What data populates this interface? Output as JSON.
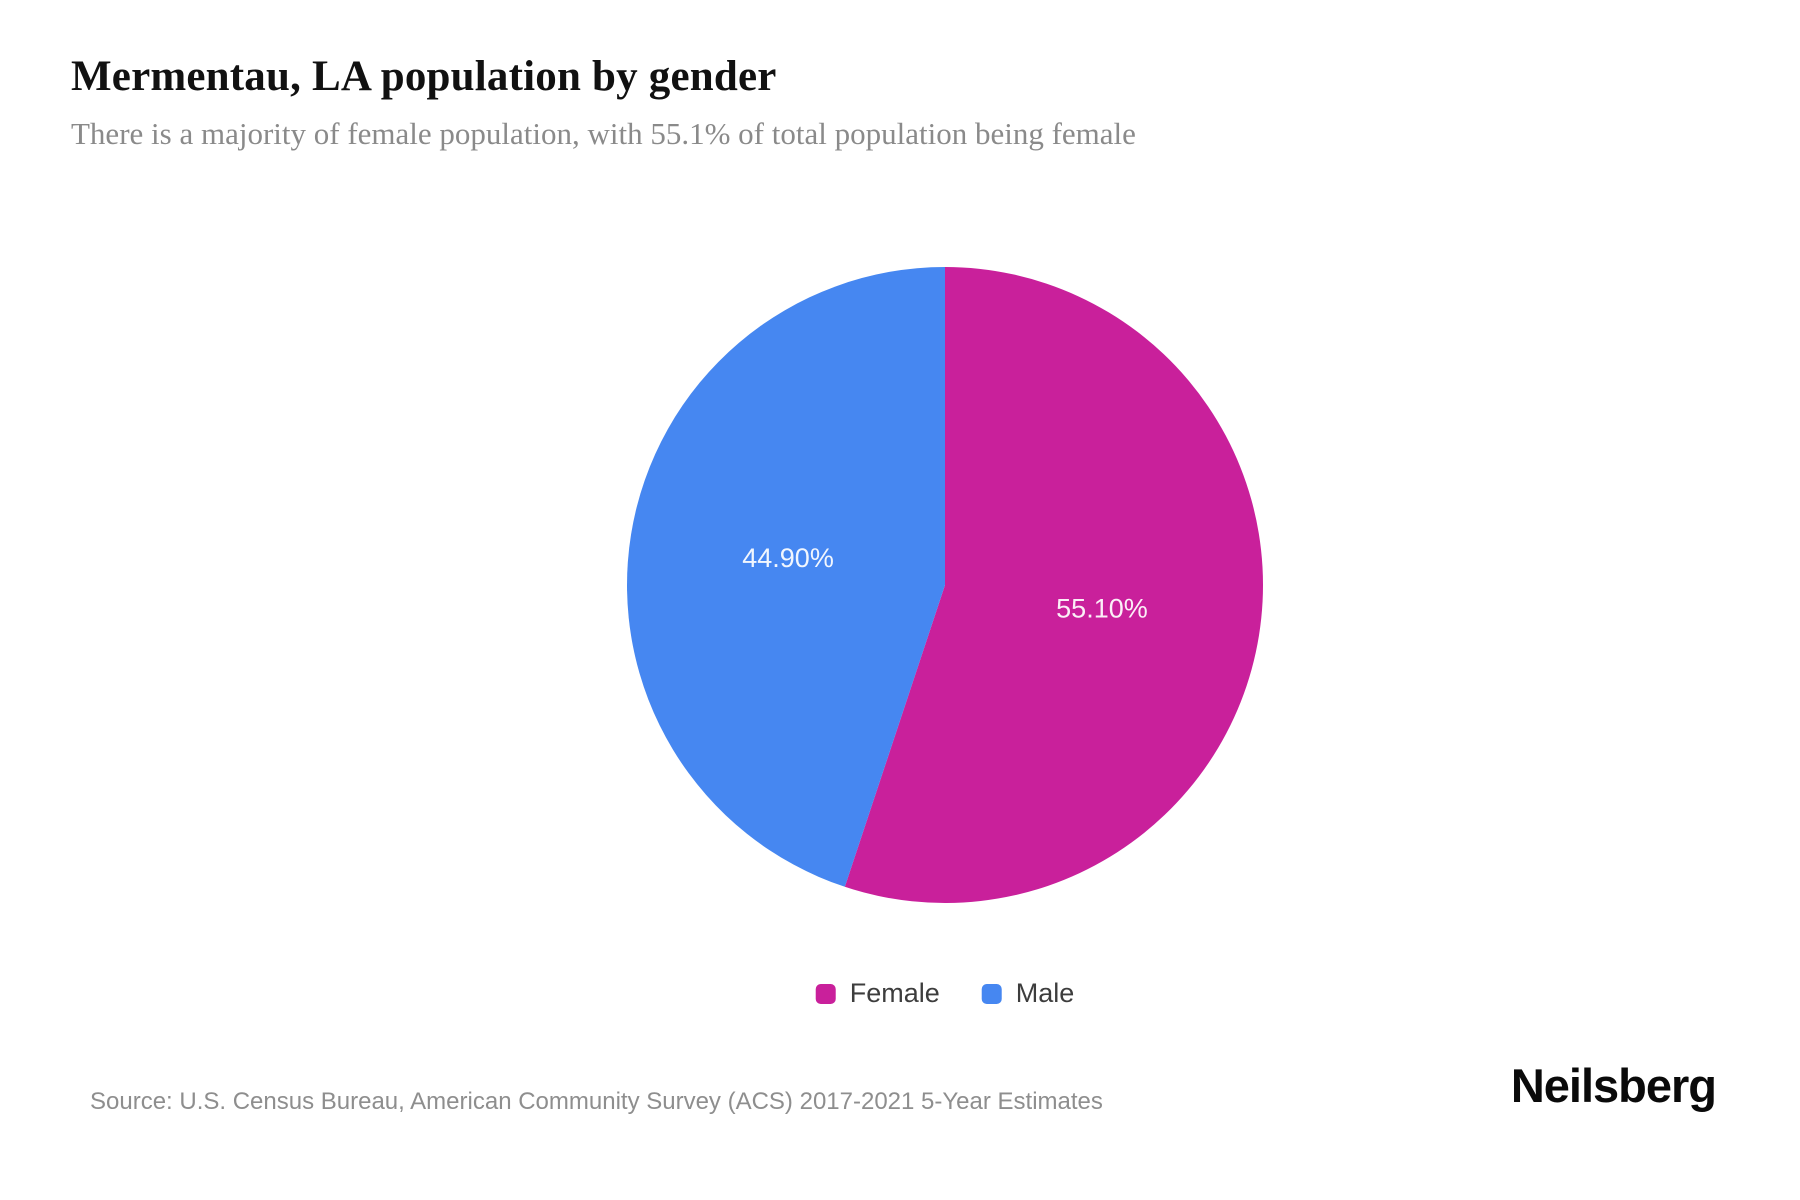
{
  "header": {
    "title": "Mermentau, LA population by gender",
    "subtitle": "There is a majority of female population, with 55.1% of total population being female"
  },
  "chart_data": {
    "type": "pie",
    "title": "Mermentau, LA population by gender",
    "series": [
      {
        "name": "Female",
        "value": 55.1,
        "label": "55.10%",
        "color": "#c9209b"
      },
      {
        "name": "Male",
        "value": 44.9,
        "label": "44.90%",
        "color": "#4687f1"
      }
    ],
    "start_at_top": true,
    "direction": "clockwise",
    "slice_label_color": "#ffffff",
    "legend_position": "bottom",
    "legend_entries": [
      "Female",
      "Male"
    ]
  },
  "footer": {
    "source": "Source: U.S. Census Bureau, American Community Survey (ACS) 2017-2021 5-Year Estimates",
    "brand": "Neilsberg"
  }
}
